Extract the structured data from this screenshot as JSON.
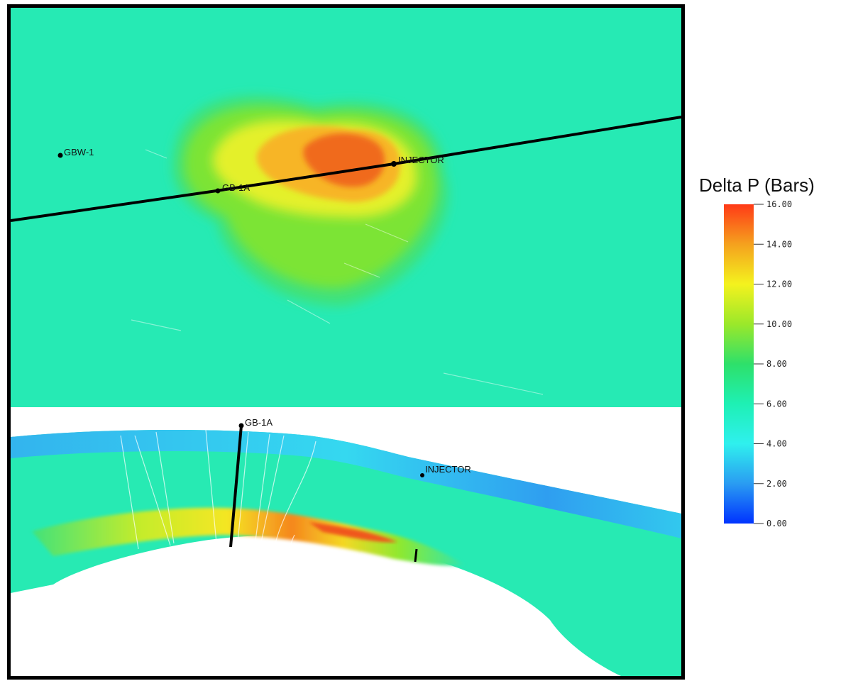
{
  "map_view": {
    "wells": [
      {
        "name": "GBW-1"
      },
      {
        "name": "GB-1A"
      },
      {
        "name": "INJECTOR"
      }
    ]
  },
  "cross_section": {
    "wells": [
      {
        "name": "GB-1A"
      },
      {
        "name": "INJECTOR"
      }
    ]
  },
  "legend": {
    "title": "Delta P (Bars)",
    "min": 0,
    "max": 16,
    "ticks": [
      "16.00",
      "14.00",
      "12.00",
      "10.00",
      "8.00",
      "6.00",
      "4.00",
      "2.00",
      "0.00"
    ],
    "colors": {
      "low": "#0033ff",
      "c2": "#2a9cf2",
      "c4": "#2ff0ee",
      "c6": "#1ef0b4",
      "c8": "#2ee06a",
      "c10": "#9be82a",
      "c12": "#f4f21e",
      "c14": "#f5a11e",
      "high": "#ff3a17"
    }
  }
}
